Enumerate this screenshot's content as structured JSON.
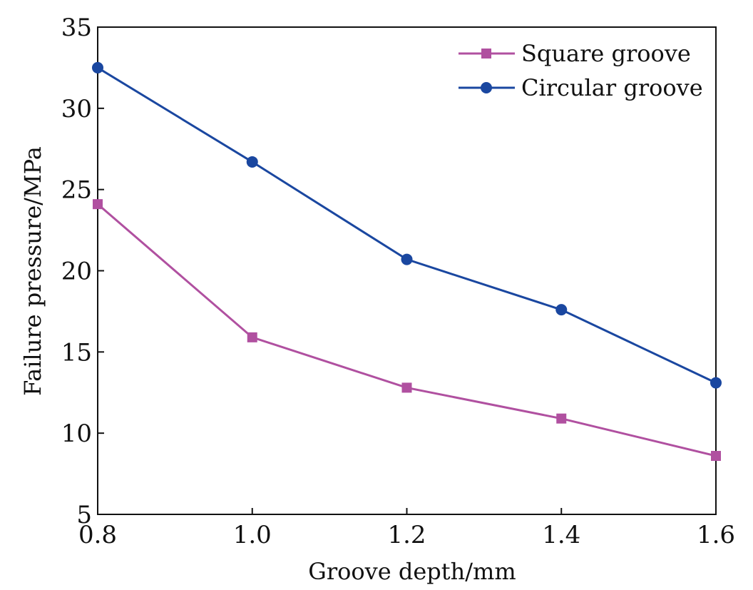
{
  "chart_data": {
    "type": "line",
    "title": "",
    "xlabel": "Groove depth/mm",
    "ylabel": "Failure pressure/MPa",
    "x": [
      0.8,
      1.0,
      1.2,
      1.4,
      1.6
    ],
    "x_tick_labels": [
      "0.8",
      "1.0",
      "1.2",
      "1.4",
      "1.6"
    ],
    "y_tick_values": [
      5,
      10,
      15,
      20,
      25,
      30,
      35
    ],
    "y_tick_labels": [
      "5",
      "10",
      "15",
      "20",
      "25",
      "30",
      "35"
    ],
    "xlim": [
      0.8,
      1.6
    ],
    "ylim": [
      5,
      35
    ],
    "grid": false,
    "legend_position": "top-right",
    "series": [
      {
        "name": "Square groove",
        "marker": "square",
        "color": "#b050a0",
        "values": [
          24.1,
          15.9,
          12.8,
          10.9,
          8.6
        ]
      },
      {
        "name": "Circular groove",
        "marker": "circle",
        "color": "#1a47a0",
        "values": [
          32.5,
          26.7,
          20.7,
          17.6,
          13.1
        ]
      }
    ]
  }
}
